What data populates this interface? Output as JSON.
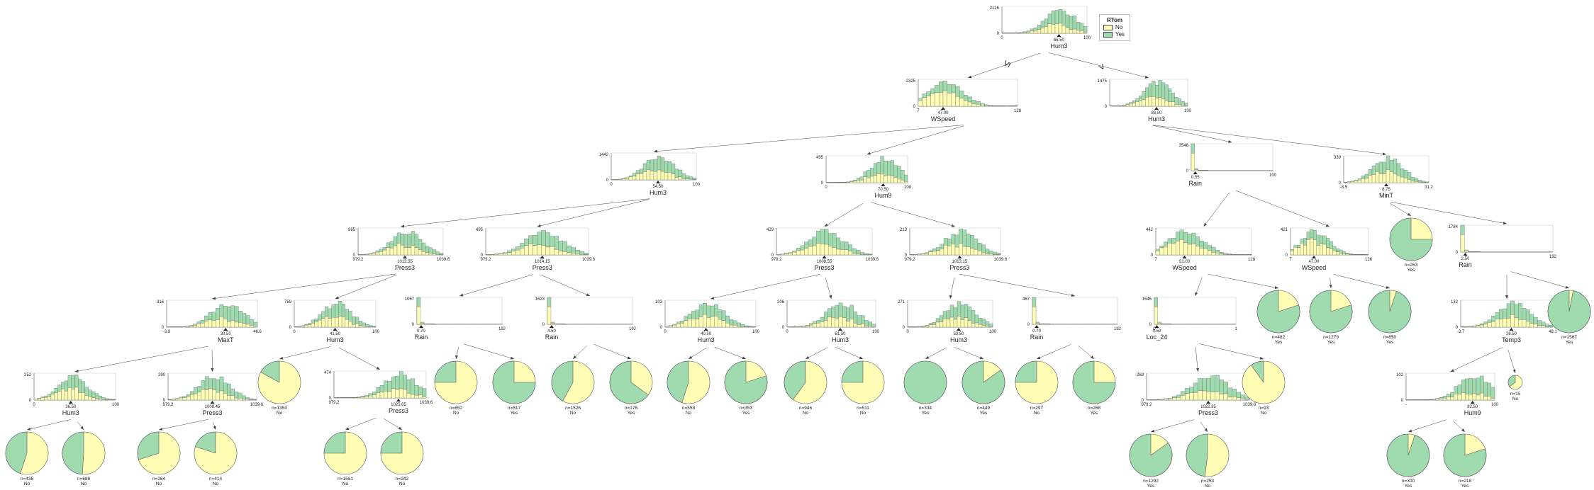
{
  "colors": {
    "no": "#FFFCB5",
    "yes": "#A0DBB0",
    "edge": "#444444",
    "axis": "#555555"
  },
  "legend": {
    "title": "RTom",
    "no": "No",
    "yes": "Yes"
  },
  "edge_labels": {
    "left": "≤",
    "right": ">"
  },
  "decision_nodes": [
    {
      "id": "n0",
      "feature": "Hum3",
      "split": "66.50",
      "ymax": "2126",
      "xmin": "0",
      "xmax": "100",
      "sm": 0.67
    },
    {
      "id": "n1",
      "feature": "WSpeed",
      "split": "47.00",
      "ymax": "2325",
      "xmin": "7",
      "xmax": "128",
      "sm": 0.25
    },
    {
      "id": "n2",
      "feature": "Hum3",
      "split": "83.50",
      "ymax": "1475",
      "xmin": "",
      "xmax": "100",
      "sm": 0.6
    },
    {
      "id": "n3",
      "feature": "Hum3",
      "split": "54.50",
      "ymax": "1442",
      "xmin": "0",
      "xmax": "100",
      "sm": 0.55
    },
    {
      "id": "n4",
      "feature": "Hum9",
      "split": "70.50",
      "ymax": "495",
      "xmin": "0",
      "xmax": "100",
      "sm": 0.7
    },
    {
      "id": "n5",
      "feature": "Rain",
      "split": "0.55",
      "ymax": "3548",
      "xmin": "",
      "xmax": "100",
      "sm": 0.05
    },
    {
      "id": "n6",
      "feature": "MinT",
      "split": "8.75",
      "ymax": "339",
      "xmin": "-8.5",
      "xmax": "31.2",
      "sm": 0.5
    },
    {
      "id": "n7",
      "feature": "Press3",
      "split": "1013.55",
      "ymax": "865",
      "xmin": "979.2",
      "xmax": "1039.6",
      "sm": 0.55
    },
    {
      "id": "n8",
      "feature": "Press3",
      "split": "1014.15",
      "ymax": "495",
      "xmin": "979.2",
      "xmax": "1039.6",
      "sm": 0.55
    },
    {
      "id": "n9",
      "feature": "Press3",
      "split": "1008.55",
      "ymax": "429",
      "xmin": "979.2",
      "xmax": "1039.6",
      "sm": 0.5
    },
    {
      "id": "n10",
      "feature": "Press3",
      "split": "1013.15",
      "ymax": "213",
      "xmin": "979.2",
      "xmax": "1039.6",
      "sm": 0.55
    },
    {
      "id": "n11",
      "feature": "WSpeed",
      "split": "51.00",
      "ymax": "442",
      "xmin": "7",
      "xmax": "128",
      "sm": 0.3
    },
    {
      "id": "n12",
      "feature": "WSpeed",
      "split": "47.00",
      "ymax": "421",
      "xmin": "7",
      "xmax": "126",
      "sm": 0.3
    },
    {
      "id": "n13",
      "feature": "Rain",
      "split": "2.50",
      "ymax": "1784",
      "xmin": "",
      "xmax": "192",
      "sm": 0.05
    },
    {
      "id": "n14",
      "feature": "MaxT",
      "split": "30.50",
      "ymax": "316",
      "xmin": "-3.8",
      "xmax": "46.6",
      "sm": 0.65
    },
    {
      "id": "n15",
      "feature": "Hum3",
      "split": "41.50",
      "ymax": "759",
      "xmin": "0",
      "xmax": "100",
      "sm": 0.5
    },
    {
      "id": "n16",
      "feature": "Rain",
      "split": "0.70",
      "ymax": "1067",
      "xmin": "",
      "xmax": "192",
      "sm": 0.05
    },
    {
      "id": "n17",
      "feature": "Rain",
      "split": "4.50",
      "ymax": "1623",
      "xmin": "",
      "xmax": "192",
      "sm": 0.05
    },
    {
      "id": "n18",
      "feature": "Hum3",
      "split": "40.50",
      "ymax": "103",
      "xmin": "0",
      "xmax": "100",
      "sm": 0.45
    },
    {
      "id": "n19",
      "feature": "Hum3",
      "split": "61.50",
      "ymax": "206",
      "xmin": "0",
      "xmax": "100",
      "sm": 0.6
    },
    {
      "id": "n20",
      "feature": "Hum3",
      "split": "53.50",
      "ymax": "271",
      "xmin": "0",
      "xmax": "100",
      "sm": 0.6
    },
    {
      "id": "n21",
      "feature": "Rain",
      "split": "0.70",
      "ymax": "467",
      "xmin": "",
      "xmax": "192",
      "sm": 0.05
    },
    {
      "id": "n22",
      "feature": "Loc_24",
      "split": "0.50",
      "ymax": "1545",
      "xmin": "0",
      "xmax": "1",
      "sm": 0.03
    },
    {
      "id": "n23",
      "feature": "Temp3",
      "split": "26.50",
      "ymax": "132",
      "xmin": "-3.7",
      "xmax": "48.1",
      "sm": 0.55
    },
    {
      "id": "n24",
      "feature": "Hum3",
      "split": "36.50",
      "ymax": "252",
      "xmin": "0",
      "xmax": "100",
      "sm": 0.45
    },
    {
      "id": "n25",
      "feature": "Press3",
      "split": "1008.45",
      "ymax": "290",
      "xmin": "979.2",
      "xmax": "1039.6",
      "sm": 0.5
    },
    {
      "id": "n26",
      "feature": "Press3",
      "split": "1025.65",
      "ymax": "474",
      "xmin": "979.2",
      "xmax": "1039.6",
      "sm": 0.7
    },
    {
      "id": "n27",
      "feature": "Press3",
      "split": "1022.35",
      "ymax": "269",
      "xmin": "979.2",
      "xmax": "1039.6",
      "sm": 0.6
    },
    {
      "id": "n28",
      "feature": "Hum9",
      "split": "82.50",
      "ymax": "102",
      "xmin": "-",
      "xmax": "100",
      "sm": 0.75
    }
  ],
  "leaves": [
    {
      "id": "L1",
      "n": "n=435",
      "cls": "No",
      "yes": 0.45
    },
    {
      "id": "L2",
      "n": "n=686",
      "cls": "No",
      "yes": 0.49
    },
    {
      "id": "L3",
      "n": "n=264",
      "cls": "No",
      "yes": 0.3
    },
    {
      "id": "L4",
      "n": "n=414",
      "cls": "No",
      "yes": 0.2
    },
    {
      "id": "L5",
      "n": "n=1350",
      "cls": "No",
      "yes": 0.17
    },
    {
      "id": "L6",
      "n": "n=1561",
      "cls": "No",
      "yes": 0.25
    },
    {
      "id": "L7",
      "n": "n=242",
      "cls": "No",
      "yes": 0.25
    },
    {
      "id": "L8",
      "n": "n=652",
      "cls": "No",
      "yes": 0.25
    },
    {
      "id": "L9",
      "n": "n=517",
      "cls": "Yes",
      "yes": 0.75
    },
    {
      "id": "L10",
      "n": "n=1526",
      "cls": "No",
      "yes": 0.42
    },
    {
      "id": "L11",
      "n": "n=176",
      "cls": "Yes",
      "yes": 0.65
    },
    {
      "id": "L12",
      "n": "n=558",
      "cls": "No",
      "yes": 0.45
    },
    {
      "id": "L13",
      "n": "n=353",
      "cls": "Yes",
      "yes": 0.8
    },
    {
      "id": "L14",
      "n": "n=946",
      "cls": "No",
      "yes": 0.4
    },
    {
      "id": "L15",
      "n": "n=511",
      "cls": "No",
      "yes": 0.25
    },
    {
      "id": "L16",
      "n": "n=334",
      "cls": "Yes",
      "yes": 1.0
    },
    {
      "id": "L17",
      "n": "n=449",
      "cls": "Yes",
      "yes": 0.85
    },
    {
      "id": "L18",
      "n": "n=297",
      "cls": "No",
      "yes": 0.25
    },
    {
      "id": "L19",
      "n": "n=268",
      "cls": "Yes",
      "yes": 0.75
    },
    {
      "id": "L20",
      "n": "n=1292",
      "cls": "Yes",
      "yes": 0.85
    },
    {
      "id": "L21",
      "n": "n=253",
      "cls": "No",
      "yes": 0.48
    },
    {
      "id": "L22",
      "n": "n=93",
      "cls": "No",
      "yes": 0.1
    },
    {
      "id": "L23",
      "n": "n=482",
      "cls": "Yes",
      "yes": 0.8
    },
    {
      "id": "L24",
      "n": "n=1279",
      "cls": "Yes",
      "yes": 0.8
    },
    {
      "id": "L25",
      "n": "n=650",
      "cls": "Yes",
      "yes": 0.95
    },
    {
      "id": "L26",
      "n": "n=263",
      "cls": "Yes",
      "yes": 0.75
    },
    {
      "id": "L27",
      "n": "n=1567",
      "cls": "Yes",
      "yes": 0.97
    },
    {
      "id": "L28",
      "n": "n=300",
      "cls": "Yes",
      "yes": 0.95
    },
    {
      "id": "L29",
      "n": "n=218",
      "cls": "Yes",
      "yes": 0.8
    },
    {
      "id": "L30",
      "n": "n=15",
      "cls": "No",
      "yes": 0.35
    }
  ]
}
